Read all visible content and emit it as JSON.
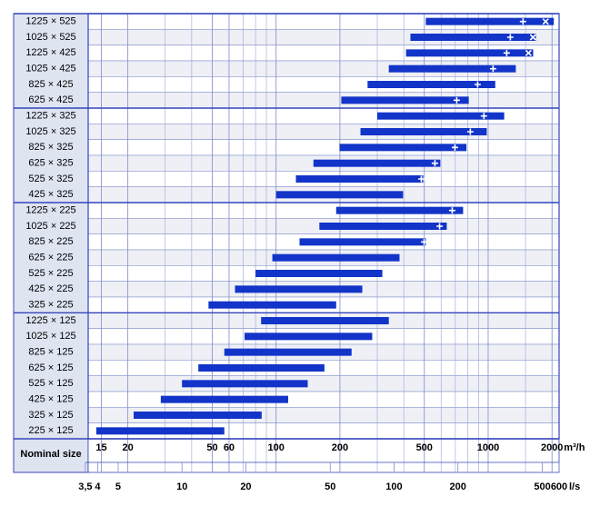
{
  "chart_data": {
    "type": "range-bar",
    "categories": [
      "1225 × 525",
      "1025 × 525",
      "1225 × 425",
      "1025 × 425",
      "825 × 425",
      "625 × 425",
      "1225 × 325",
      "1025 × 325",
      "825 × 325",
      "625 × 325",
      "525 × 325",
      "425 × 325",
      "1225 × 225",
      "1025 × 225",
      "825 × 225",
      "625 × 225",
      "525 × 225",
      "425 × 225",
      "325 × 225",
      "1225 × 125",
      "1025 × 125",
      "825 × 125",
      "625 × 125",
      "525 × 125",
      "425 × 125",
      "325 × 125",
      "225 × 125"
    ],
    "category_header": "Nominal size",
    "start": [
      508,
      430,
      410,
      340,
      270,
      203,
      300,
      250,
      199,
      150,
      124,
      100,
      192,
      160,
      129,
      96,
      80,
      64,
      48,
      85,
      71,
      57,
      43,
      36,
      28.6,
      21.3,
      14.2
    ],
    "end": [
      2040,
      1680,
      1630,
      1350,
      1080,
      810,
      1190,
      985,
      790,
      595,
      494,
      397,
      762,
      638,
      508,
      382,
      317,
      255,
      192,
      340,
      284,
      227,
      169,
      141,
      114,
      85.5,
      57
    ],
    "plus": [
      1460,
      1272,
      1223,
      1055,
      892,
      711,
      955,
      824,
      697,
      561,
      484,
      null,
      677,
      590,
      499,
      null,
      null,
      null,
      null,
      null,
      null,
      null,
      null,
      null,
      null,
      null,
      null
    ],
    "cross": [
      1867,
      1627,
      1550,
      null,
      null,
      null,
      null,
      null,
      null,
      null,
      null,
      null,
      null,
      null,
      null,
      null,
      null,
      null,
      null,
      null,
      null,
      null,
      null,
      null,
      null,
      null,
      null
    ],
    "color": "#1234c8",
    "log_x": true,
    "xlim": [
      13,
      2160
    ],
    "xticks": [
      15,
      20,
      50,
      60,
      100,
      200,
      500,
      1000,
      2000
    ],
    "xgrid_minor": [
      30,
      40,
      70,
      80,
      90,
      300,
      400,
      600,
      700,
      800,
      900,
      1500
    ],
    "x_unit": "m³/h",
    "x2lim": [
      3.61,
      600
    ],
    "x2ticks": [
      {
        "value": 3.5,
        "label": "3,5"
      },
      4,
      5,
      10,
      20,
      50,
      100,
      200,
      500,
      600
    ],
    "x2_unit": "l/s"
  }
}
